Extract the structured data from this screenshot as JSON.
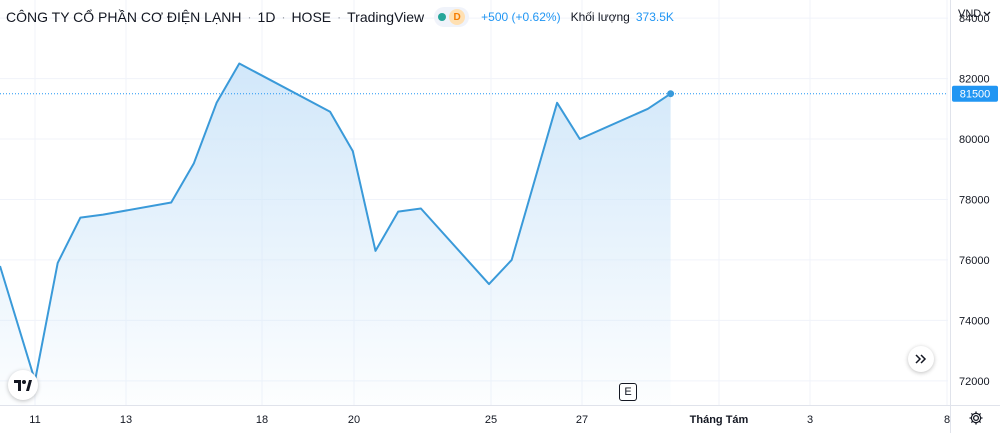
{
  "header": {
    "title": "CÔNG TY CỔ PHẦN CƠ ĐIỆN LẠNH",
    "interval": "1D",
    "exchange": "HOSE",
    "provider": "TradingView",
    "sep": "·",
    "badge": "D",
    "change": "+500 (+0.62%)",
    "volume_label": "Khối lượng",
    "volume_value": "373.5K"
  },
  "axis": {
    "currency": "VND"
  },
  "colors": {
    "line": "#3a9ad9",
    "fill_top": "#cfe6f9",
    "grid": "#f0f3fa",
    "price_label_bg": "#2196f3"
  },
  "chart_data": {
    "type": "area",
    "x_tick_labels": [
      "11",
      "13",
      "18",
      "20",
      "25",
      "27",
      "Tháng Tám",
      "3",
      "8"
    ],
    "y_tick_labels": [
      "84000",
      "82000",
      "80000",
      "78000",
      "76000",
      "74000",
      "72000"
    ],
    "ylim": [
      71200,
      84600
    ],
    "grid": true,
    "current_price": 81500,
    "current_price_label": "81500",
    "points": [
      {
        "x": "2023-07-10",
        "y": 75800
      },
      {
        "x": "2023-07-11",
        "y": 72000
      },
      {
        "x": "2023-07-12",
        "y": 75900
      },
      {
        "x": "2023-07-13",
        "y": 77400
      },
      {
        "x": "2023-07-14",
        "y": 77500
      },
      {
        "x": "2023-07-17",
        "y": 77900
      },
      {
        "x": "2023-07-18",
        "y": 79200
      },
      {
        "x": "2023-07-19",
        "y": 81200
      },
      {
        "x": "2023-07-20",
        "y": 82500
      },
      {
        "x": "2023-07-24",
        "y": 80900
      },
      {
        "x": "2023-07-25",
        "y": 79600
      },
      {
        "x": "2023-07-26",
        "y": 76300
      },
      {
        "x": "2023-07-27",
        "y": 77600
      },
      {
        "x": "2023-07-28",
        "y": 77700
      },
      {
        "x": "2023-07-31",
        "y": 75200
      },
      {
        "x": "2023-08-01",
        "y": 76000
      },
      {
        "x": "2023-08-03",
        "y": 81200
      },
      {
        "x": "2023-08-04",
        "y": 80000
      },
      {
        "x": "2023-08-07",
        "y": 81000
      },
      {
        "x": "2023-08-08",
        "y": 81500
      }
    ]
  }
}
